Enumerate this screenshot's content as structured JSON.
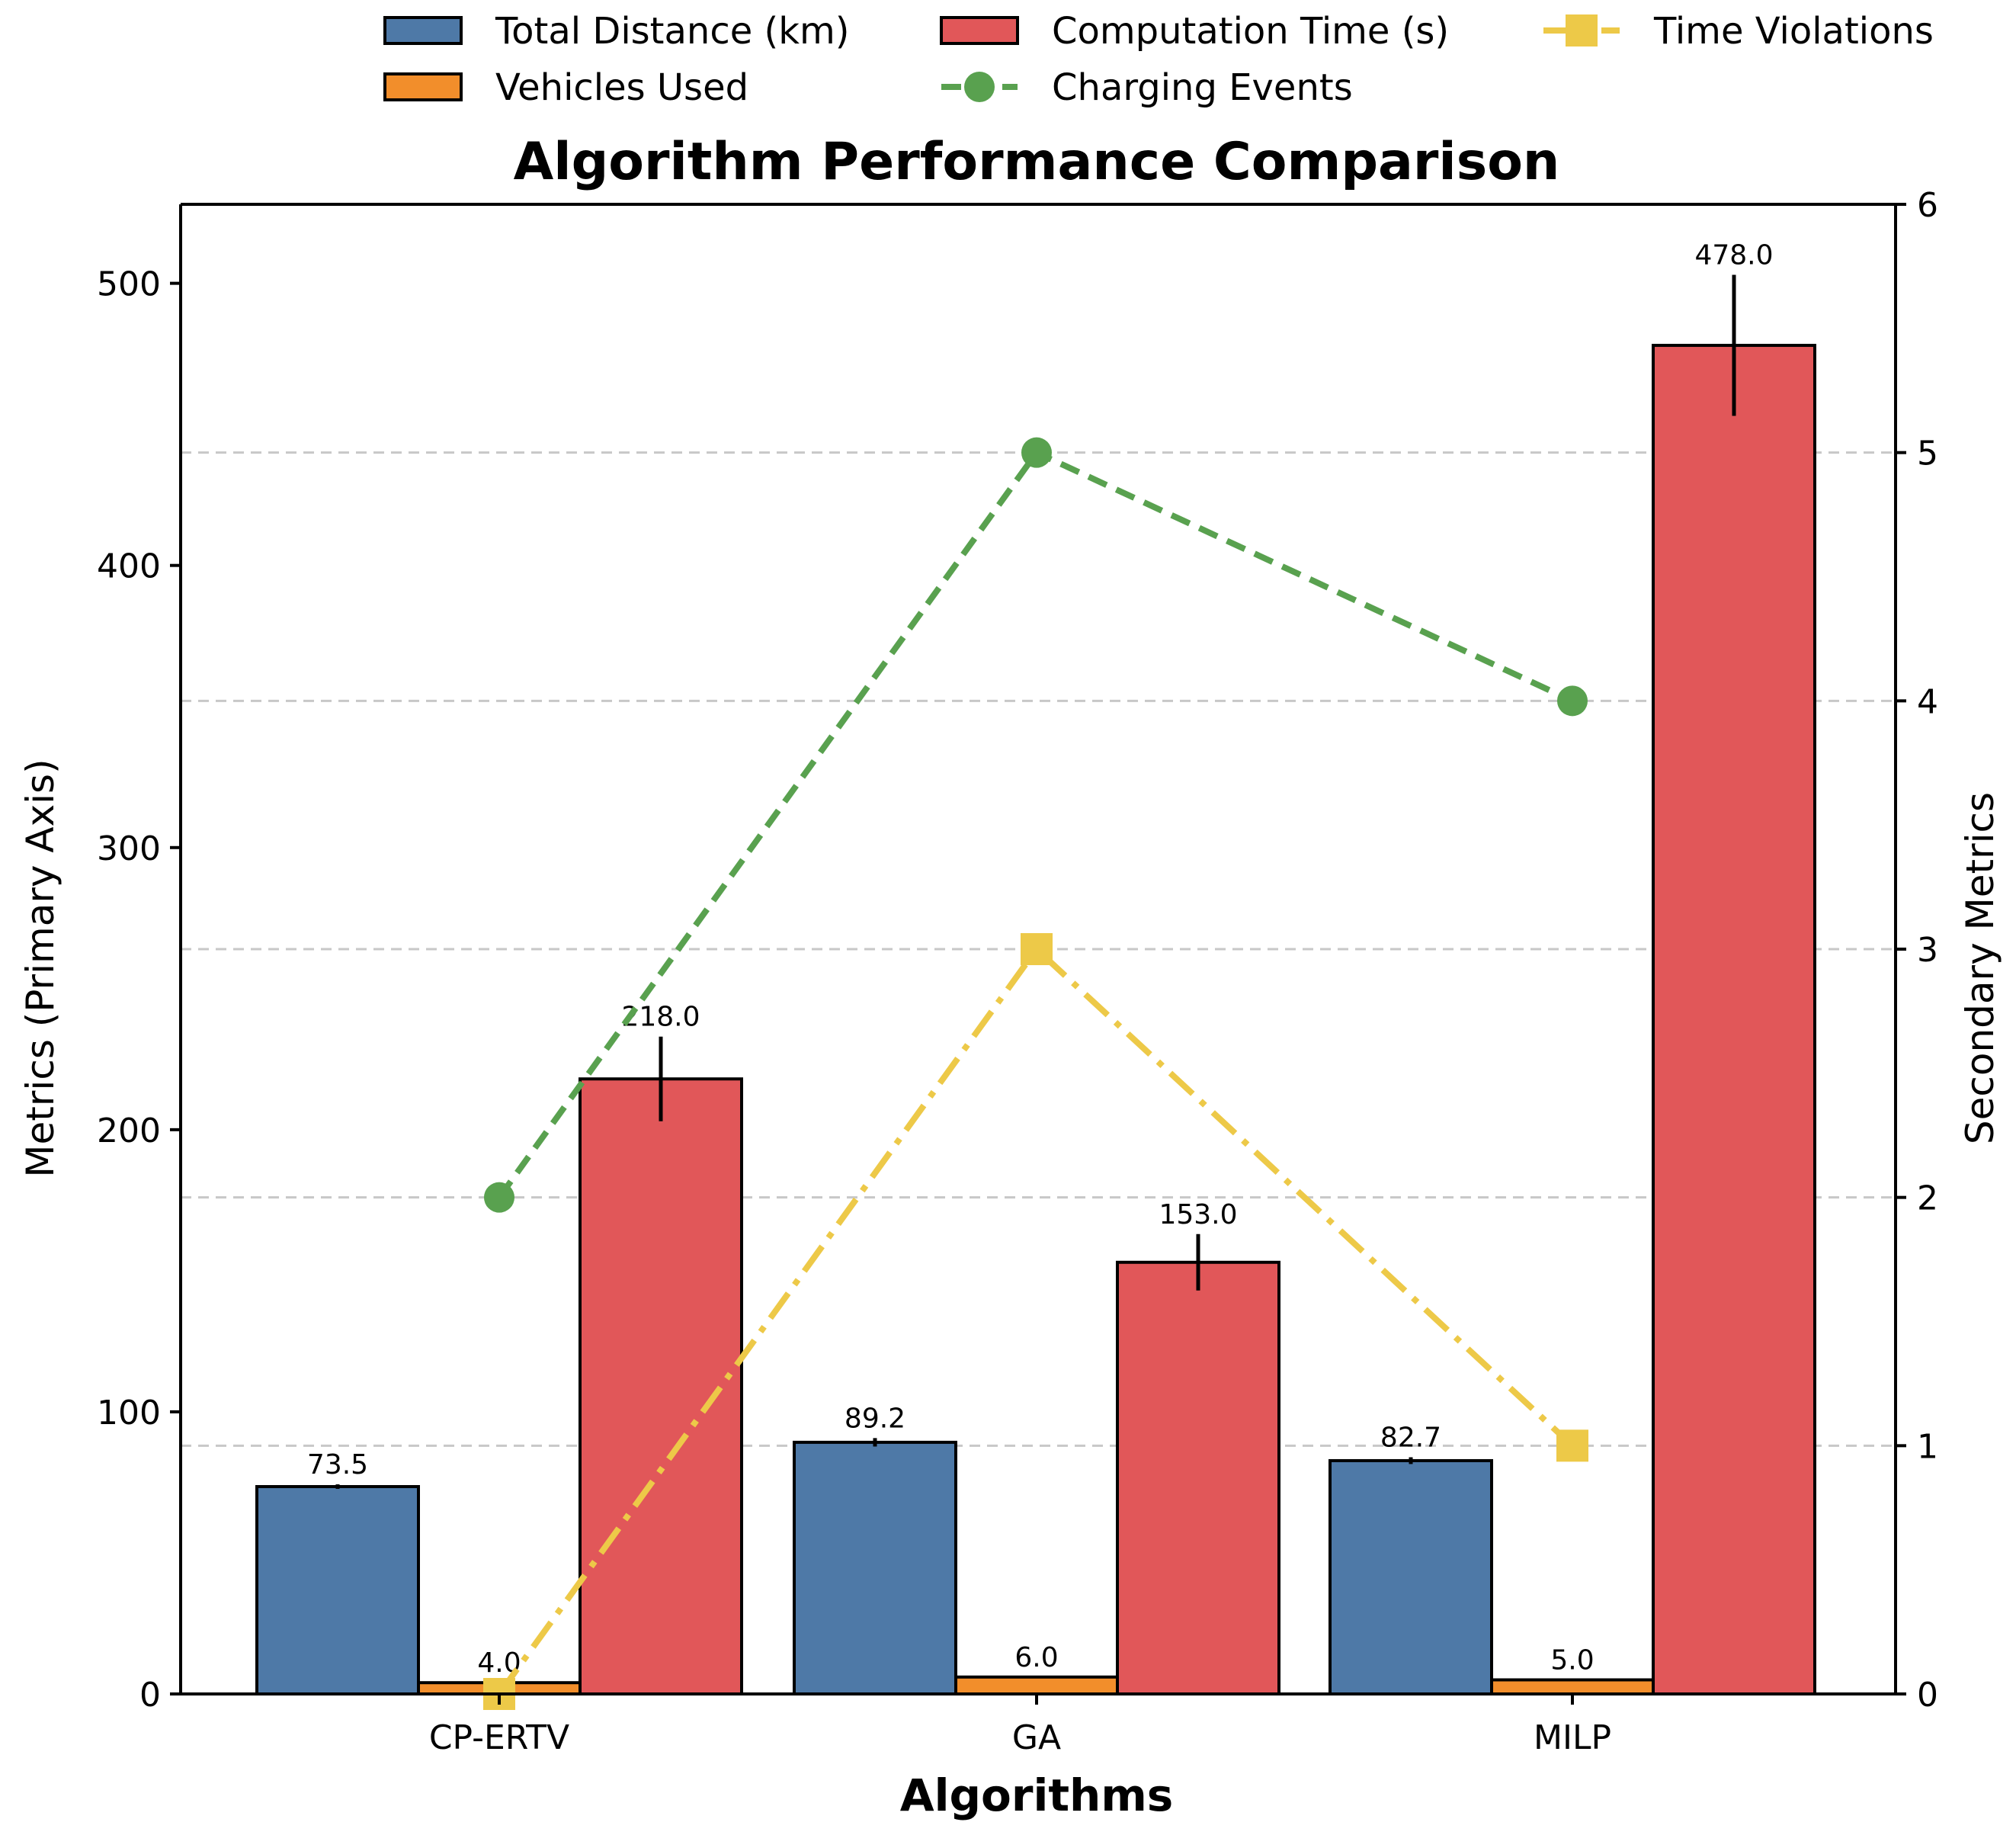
{
  "chart_data": {
    "type": "bar",
    "title": "Algorithm Performance Comparison",
    "xlabel": "Algorithms",
    "ylabel": "Metrics (Primary Axis)",
    "ylabel_secondary": "Secondary Metrics",
    "categories": [
      "CP-ERTV",
      "GA",
      "MILP"
    ],
    "ylim": [
      0,
      528
    ],
    "yticks": [
      "0",
      "100",
      "200",
      "300",
      "400",
      "500"
    ],
    "ylim_secondary": [
      0,
      6
    ],
    "yticks_secondary": [
      "0",
      "1",
      "2",
      "3",
      "4",
      "5",
      "6"
    ],
    "grid": "horizontal dashed (secondary axis)",
    "legend_position": "top, above title, 3 columns",
    "bar_series": [
      {
        "name": "Total Distance (km)",
        "color": "#4e79a7",
        "values": [
          73.5,
          89.2,
          82.7
        ],
        "errors": [
          0.8,
          1.5,
          1.2
        ],
        "labels": [
          "73.5",
          "89.2",
          "82.7"
        ]
      },
      {
        "name": "Vehicles Used",
        "color": "#f28e2b",
        "values": [
          4.0,
          6.0,
          5.0
        ],
        "errors": [
          0,
          0,
          0
        ],
        "labels": [
          "4.0",
          "6.0",
          "5.0"
        ]
      },
      {
        "name": "Computation Time (s)",
        "color": "#e15759",
        "values": [
          218.0,
          153.0,
          478.0
        ],
        "errors": [
          15,
          10,
          25
        ],
        "labels": [
          "218.0",
          "153.0",
          "478.0"
        ]
      }
    ],
    "line_series": [
      {
        "name": "Charging Events",
        "color": "#59a14f",
        "style": "dashed",
        "marker": "circle",
        "axis": "secondary",
        "values": [
          2,
          5,
          4
        ]
      },
      {
        "name": "Time Violations",
        "color": "#edc948",
        "style": "dash-dot",
        "marker": "square",
        "axis": "secondary",
        "values": [
          0,
          3,
          1
        ]
      }
    ]
  }
}
